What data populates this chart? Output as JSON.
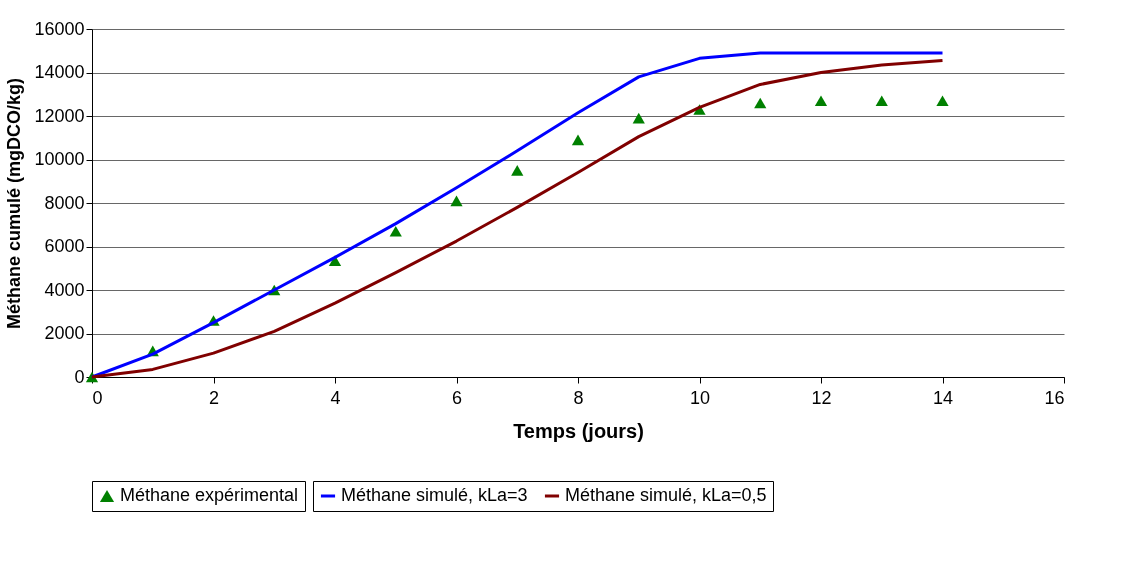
{
  "chart_data": {
    "type": "line",
    "xlabel": "Temps (jours)",
    "ylabel": "Méthane cumulé (mgDCO/kg)",
    "x": [
      0,
      1,
      2,
      3,
      4,
      5,
      6,
      7,
      8,
      9,
      10,
      11,
      12,
      13,
      14
    ],
    "xlim": [
      0,
      16
    ],
    "xticks": [
      0,
      2,
      4,
      6,
      8,
      10,
      12,
      14,
      16
    ],
    "ylim": [
      0,
      16000
    ],
    "yticks": [
      0,
      2000,
      4000,
      6000,
      8000,
      10000,
      12000,
      14000,
      16000
    ],
    "grid": "y",
    "legend": "bottom",
    "series": [
      {
        "name": "Méthane expérimental",
        "type": "scatter",
        "marker": "triangle",
        "color": "#008000",
        "values": [
          0,
          1200,
          2600,
          4000,
          5350,
          6700,
          8100,
          9500,
          10900,
          11900,
          12300,
          12600,
          12700,
          12700,
          12700
        ]
      },
      {
        "name": "Méthane simulé, kLa=3",
        "color": "#0000ff",
        "values": [
          0,
          1050,
          2500,
          4000,
          5500,
          7050,
          8700,
          10400,
          12150,
          13800,
          14650,
          14900,
          14900,
          14900,
          14900
        ]
      },
      {
        "name": "Méthane simulé, kLa=0,5",
        "color": "#800000",
        "values": [
          0,
          350,
          1100,
          2100,
          3400,
          4800,
          6250,
          7800,
          9400,
          11050,
          12400,
          13450,
          14000,
          14350,
          14550
        ]
      }
    ]
  }
}
